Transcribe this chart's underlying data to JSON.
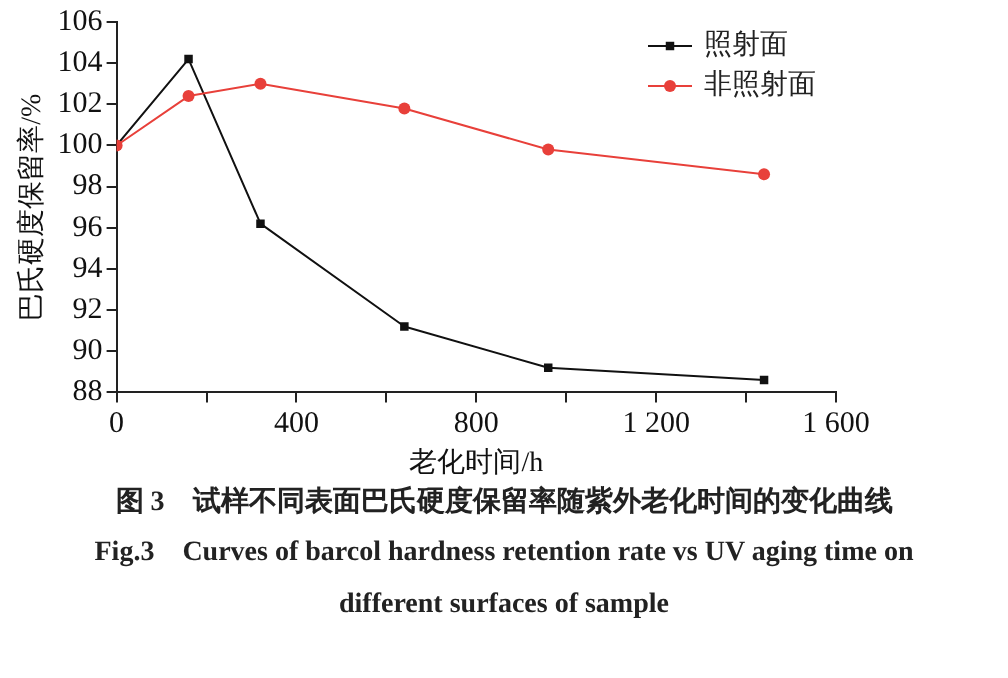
{
  "chart_data": {
    "type": "line",
    "xlabel": "老化时间/h",
    "ylabel": "巴氏硬度保留率/%",
    "x": [
      0,
      160,
      320,
      640,
      960,
      1440
    ],
    "series": [
      {
        "name": "照射面",
        "color": "#111111",
        "marker": "square",
        "values": [
          100,
          104.2,
          96.2,
          91.2,
          89.2,
          88.6
        ]
      },
      {
        "name": "非照射面",
        "color": "#e8403a",
        "marker": "circle",
        "values": [
          100,
          102.4,
          103,
          101.8,
          99.8,
          98.6
        ]
      }
    ],
    "xlim": [
      0,
      1600
    ],
    "xticks": [
      0,
      {
        "value": 200,
        "label": null
      },
      400,
      {
        "value": 600,
        "label": null
      },
      800,
      {
        "value": 1000,
        "label": null
      },
      {
        "value": 1200,
        "label": "1 200"
      },
      {
        "value": 1400,
        "label": null
      },
      {
        "value": 1600,
        "label": "1 600"
      }
    ],
    "ylim": [
      88,
      106
    ],
    "yticks": [
      88,
      90,
      92,
      94,
      96,
      98,
      100,
      102,
      104,
      106
    ],
    "grid": false,
    "legend": "top right",
    "line_style": "solid",
    "annotations": [
      "图 3　试样不同表面巴氏硬度保留率随紫外老化时间的变化曲线",
      "Fig.3　Curves of barcol hardness retention rate vs UV aging time on different surfaces of sample"
    ]
  }
}
